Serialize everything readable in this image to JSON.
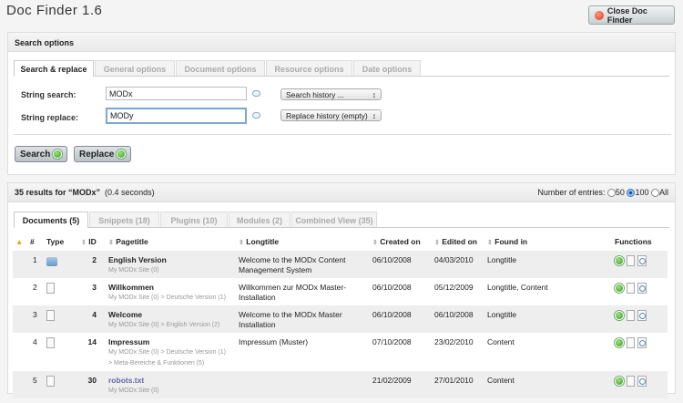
{
  "app": {
    "title": "Doc Finder 1.6",
    "close_label": "Close Doc Finder"
  },
  "search_panel": {
    "header": "Search options",
    "tabs": [
      "Search & replace",
      "General options",
      "Document options",
      "Resource options",
      "Date options"
    ],
    "string_search_label": "String search:",
    "string_search_value": "MODx",
    "string_replace_label": "String replace:",
    "string_replace_value": "MODy",
    "search_history": "Search history ...",
    "replace_history": "Replace history (empty)",
    "search_button": "Search",
    "replace_button": "Replace"
  },
  "results": {
    "summary": "35 results for “MODx”",
    "time": "(0.4 seconds)",
    "entries_label": "Number of entries:",
    "entries_options": [
      "50",
      "100",
      "All"
    ],
    "entries_selected": "100",
    "tabs": [
      "Documents (5)",
      "Snippets (18)",
      "Plugins (10)",
      "Modules (2)",
      "Combined View (35)"
    ],
    "columns": [
      "#",
      "Type",
      "ID",
      "Pagetitle",
      "Longtitle",
      "Created on",
      "Edited on",
      "Found in",
      "Functions"
    ],
    "rows": [
      {
        "n": "1",
        "type": "folder",
        "id": "2",
        "pagetitle": "English Version",
        "path": "My MODx Site (0)",
        "path2": "",
        "longtitle": "Welcome to the MODx Content Management System",
        "created": "06/10/2008",
        "edited": "04/03/2010",
        "found": "Longtitle"
      },
      {
        "n": "2",
        "type": "document",
        "id": "3",
        "pagetitle": "Willkommen",
        "path": "My MODx Site (0) > Deutsche Version (1)",
        "path2": "",
        "longtitle": "Willkommen zur MODx Master-Installation",
        "created": "06/10/2008",
        "edited": "05/12/2009",
        "found": "Longtitle, Content"
      },
      {
        "n": "3",
        "type": "document",
        "id": "4",
        "pagetitle": "Welcome",
        "path": "My MODx Site (0) > English Version (2)",
        "path2": "",
        "longtitle": "Welcome to the MODx Master Installation",
        "created": "06/10/2008",
        "edited": "06/10/2008",
        "found": "Longtitle"
      },
      {
        "n": "4",
        "type": "document",
        "id": "14",
        "pagetitle": "Impressum",
        "path": "My MODx Site (0) > Deutsche Version (1)",
        "path2": "> Meta-Bereiche & Funktionen (5)",
        "longtitle": "Impressum (Muster)",
        "created": "07/10/2008",
        "edited": "23/02/2010",
        "found": "Content"
      },
      {
        "n": "5",
        "type": "document",
        "id": "30",
        "pagetitle": "robots.txt",
        "path": "My MODx Site (0)",
        "path2": "",
        "longtitle": "",
        "created": "21/02/2009",
        "edited": "27/01/2010",
        "found": "Content"
      }
    ]
  }
}
